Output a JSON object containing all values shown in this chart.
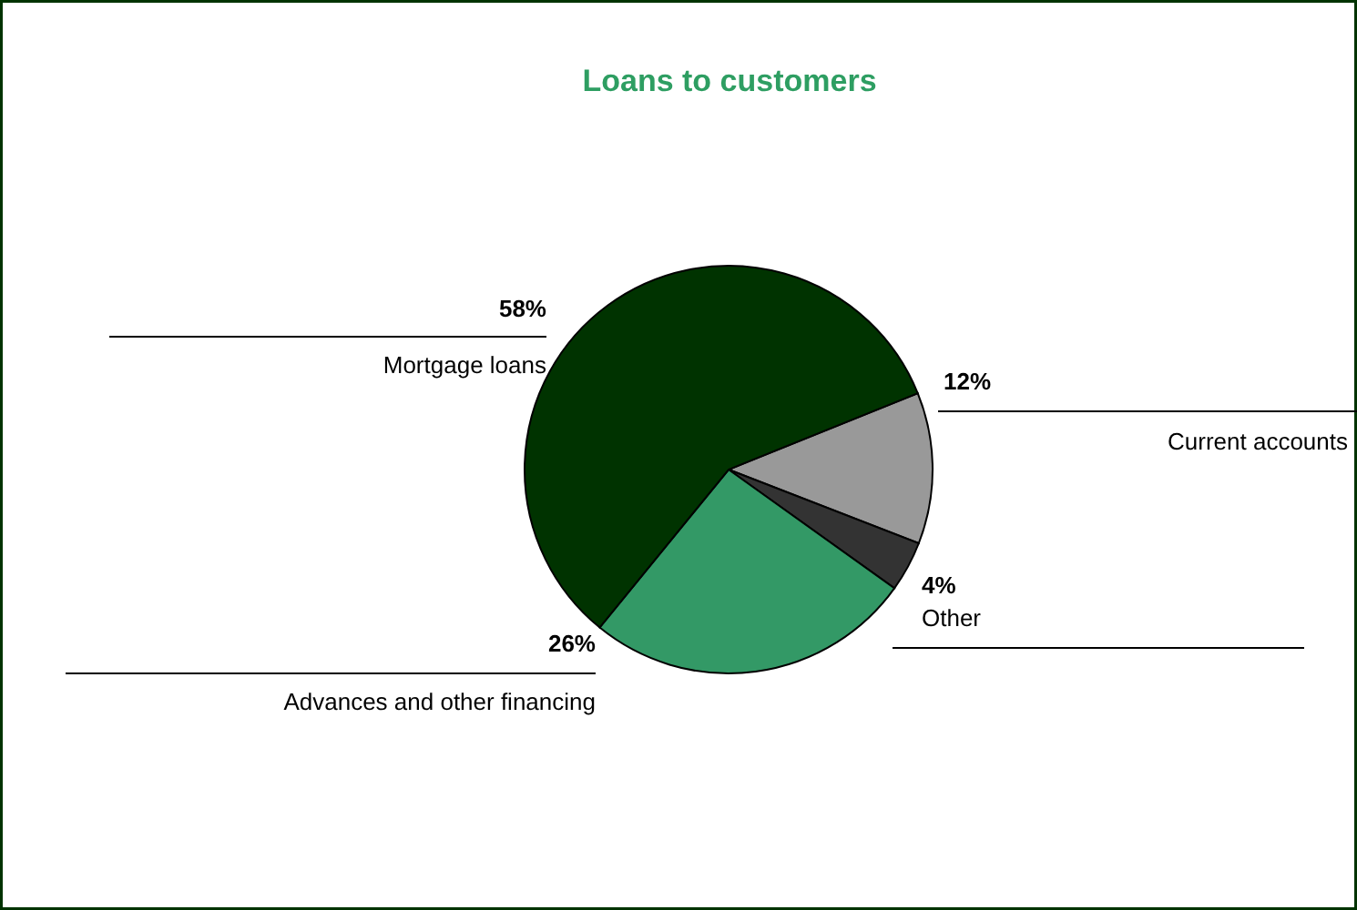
{
  "chart_data": {
    "type": "pie",
    "title": "Loans to customers",
    "categories": [
      "Current accounts",
      "Other",
      "Advances and other financing",
      "Mortgage loans"
    ],
    "values": [
      12,
      4,
      26,
      58
    ],
    "value_labels": [
      "12%",
      "4%",
      "26%",
      "58%"
    ],
    "colors": [
      "#999999",
      "#333333",
      "#339966",
      "#003300"
    ],
    "legend": false
  }
}
